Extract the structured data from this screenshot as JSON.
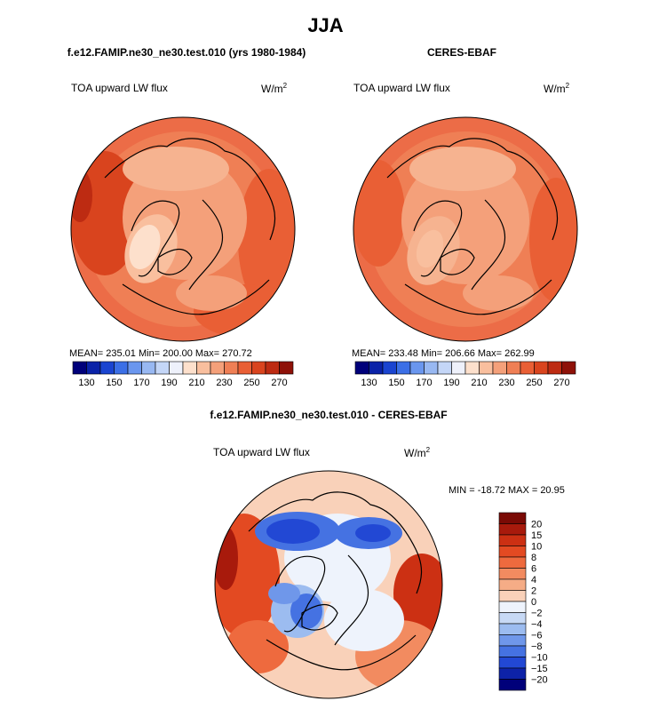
{
  "figure": {
    "title": "JJA",
    "panels": [
      {
        "subtitle": "f.e12.FAMIP.ne30_ne30.test.010 (yrs 1980-1984)",
        "field_label": "TOA upward LW flux",
        "units": "W/m2",
        "units_base": "W/m",
        "units_exp": "2",
        "stats": "MEAN= 235.01   Min= 200.00   Max= 270.72"
      },
      {
        "subtitle": "CERES-EBAF",
        "field_label": "TOA upward LW flux",
        "units": "W/m2",
        "units_base": "W/m",
        "units_exp": "2",
        "stats": "MEAN= 233.48   Min= 206.66   Max= 262.99"
      },
      {
        "subtitle": "f.e12.FAMIP.ne30_ne30.test.010 - CERES-EBAF",
        "field_label": "TOA upward LW flux",
        "units": "W/m2",
        "units_base": "W/m",
        "units_exp": "2",
        "stats": "MIN = -18.72  MAX =   20.95"
      }
    ]
  },
  "chart_data": [
    {
      "type": "heatmap",
      "projection": "polar stereographic (Arctic)",
      "title": "f.e12.FAMIP.ne30_ne30.test.010 (yrs 1980-1984)",
      "variable": "TOA upward LW flux",
      "units": "W/m2",
      "mean": 235.01,
      "min": 200.0,
      "max": 270.72,
      "colorbar": {
        "orientation": "horizontal",
        "tick_labels": [
          "130",
          "150",
          "170",
          "190",
          "210",
          "230",
          "250",
          "270"
        ],
        "colors": [
          "#00007a",
          "#0a22a8",
          "#1a44d0",
          "#3b6fe6",
          "#6a96ee",
          "#98b8f2",
          "#c4d6f7",
          "#eef1fb",
          "#fde0cc",
          "#f9bf9e",
          "#f4a07a",
          "#ef7f55",
          "#e95f35",
          "#d9441e",
          "#bd2b12",
          "#8e1108"
        ]
      }
    },
    {
      "type": "heatmap",
      "projection": "polar stereographic (Arctic)",
      "title": "CERES-EBAF",
      "variable": "TOA upward LW flux",
      "units": "W/m2",
      "mean": 233.48,
      "min": 206.66,
      "max": 262.99,
      "colorbar": {
        "orientation": "horizontal",
        "tick_labels": [
          "130",
          "150",
          "170",
          "190",
          "210",
          "230",
          "250",
          "270"
        ],
        "colors": [
          "#00007a",
          "#0a22a8",
          "#1a44d0",
          "#3b6fe6",
          "#6a96ee",
          "#98b8f2",
          "#c4d6f7",
          "#eef1fb",
          "#fde0cc",
          "#f9bf9e",
          "#f4a07a",
          "#ef7f55",
          "#e95f35",
          "#d9441e",
          "#bd2b12",
          "#8e1108"
        ]
      }
    },
    {
      "type": "heatmap",
      "projection": "polar stereographic (Arctic)",
      "title": "f.e12.FAMIP.ne30_ne30.test.010 - CERES-EBAF",
      "variable": "TOA upward LW flux",
      "units": "W/m2",
      "min": -18.72,
      "max": 20.95,
      "colorbar": {
        "orientation": "vertical",
        "tick_labels": [
          "20",
          "15",
          "10",
          "8",
          "6",
          "4",
          "2",
          "0",
          "−2",
          "−4",
          "−6",
          "−8",
          "−10",
          "−15",
          "−20"
        ],
        "colors": [
          "#7a0a05",
          "#a81a0c",
          "#cc3013",
          "#e34a22",
          "#ee6a3e",
          "#f28b60",
          "#f5ac86",
          "#f9d1b9",
          "#eef3fc",
          "#c7d9f5",
          "#9cbcf0",
          "#6f97ea",
          "#4572e2",
          "#2248d4",
          "#0d22a8",
          "#00007a"
        ]
      }
    }
  ]
}
